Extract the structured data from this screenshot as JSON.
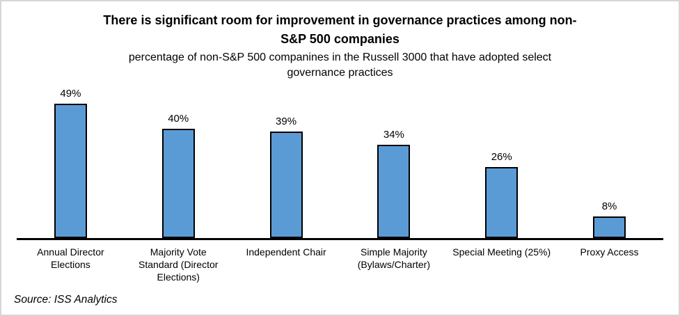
{
  "header": {
    "title": "There is significant room for improvement in governance practices among non-S&P 500 companies",
    "title_lines": [
      "There is significant room for improvement in governance practices among non-",
      "S&P 500 companies"
    ],
    "subtitle": "percentage of non-S&P 500 companines in the Russell 3000 that have adopted select governance practices",
    "subtitle_lines": [
      "percentage of non-S&P 500 companines in the Russell 3000 that have adopted select",
      "governance practices"
    ]
  },
  "source_note": "Source: ISS Analytics",
  "chart_data": {
    "type": "bar",
    "title": "There is significant room for improvement in governance practices among non-S&P 500 companies",
    "subtitle": "percentage of non-S&P 500 companines in the Russell 3000 that have adopted select governance practices",
    "categories": [
      "Annual Director Elections",
      "Majority Vote Standard (Director Elections)",
      "Independent Chair",
      "Simple Majority (Bylaws/Charter)",
      "Special Meeting (25%)",
      "Proxy Access"
    ],
    "categories_display_lines": [
      [
        "Annual Director",
        "Elections"
      ],
      [
        "Majority Vote",
        "Standard (Director",
        "Elections)"
      ],
      [
        "Independent Chair"
      ],
      [
        "Simple Majority",
        "(Bylaws/Charter)"
      ],
      [
        "Special Meeting (25%)"
      ],
      [
        "Proxy Access"
      ]
    ],
    "values": [
      49,
      40,
      39,
      34,
      26,
      8
    ],
    "value_labels": [
      "49%",
      "40%",
      "39%",
      "34%",
      "26%",
      "8%"
    ],
    "unit": "%",
    "ylim": [
      0,
      55
    ],
    "grid": false,
    "legend": false,
    "data_labels": "above-bars",
    "bar_color": "#5B9BD5",
    "bar_border_color": "#000000",
    "axis_color": "#000000",
    "text_color": "#000000",
    "frame_border_color": "#d6d6d6"
  }
}
